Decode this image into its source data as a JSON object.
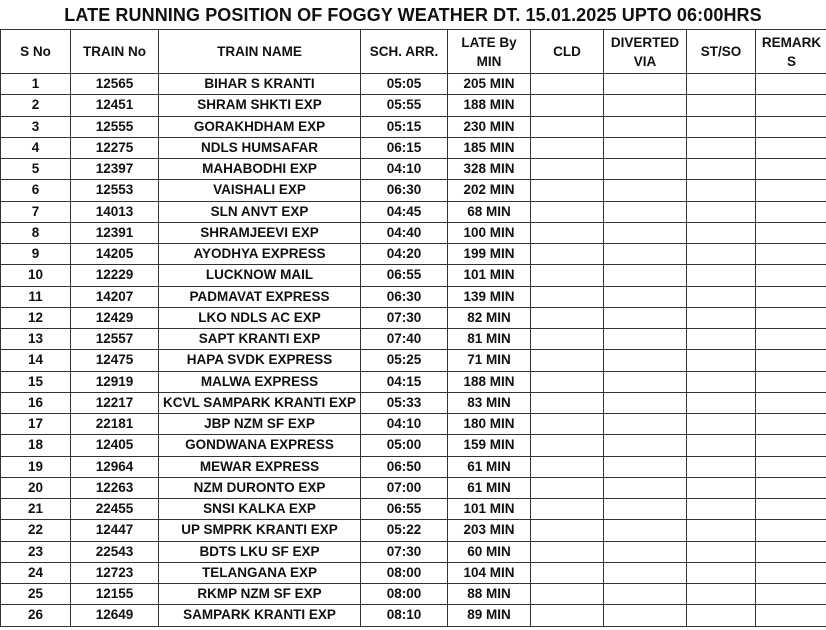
{
  "title": "LATE RUNNING POSITION OF FOGGY WEATHER  DT. 15.01.2025 UPTO 06:00HRS",
  "columns": [
    "S No",
    "TRAIN No",
    "TRAIN NAME",
    "SCH. ARR.",
    "LATE By MIN",
    "CLD",
    "DIVERTED VIA",
    "ST/SO",
    "REMARK S"
  ],
  "rows": [
    [
      "1",
      "12565",
      "BIHAR S KRANTI",
      "05:05",
      "205 MIN",
      "",
      "",
      "",
      ""
    ],
    [
      "2",
      "12451",
      "SHRAM SHKTI EXP",
      "05:55",
      "188 MIN",
      "",
      "",
      "",
      ""
    ],
    [
      "3",
      "12555",
      "GORAKHDHAM EXP",
      "05:15",
      "230 MIN",
      "",
      "",
      "",
      ""
    ],
    [
      "4",
      "12275",
      "NDLS HUMSAFAR",
      "06:15",
      "185 MIN",
      "",
      "",
      "",
      ""
    ],
    [
      "5",
      "12397",
      "MAHABODHI EXP",
      "04:10",
      "328 MIN",
      "",
      "",
      "",
      ""
    ],
    [
      "6",
      "12553",
      "VAISHALI EXP",
      "06:30",
      "202 MIN",
      "",
      "",
      "",
      ""
    ],
    [
      "7",
      "14013",
      "SLN ANVT EXP",
      "04:45",
      "68 MIN",
      "",
      "",
      "",
      ""
    ],
    [
      "8",
      "12391",
      "SHRAMJEEVI EXP",
      "04:40",
      "100 MIN",
      "",
      "",
      "",
      ""
    ],
    [
      "9",
      "14205",
      "AYODHYA EXPRESS",
      "04:20",
      "199 MIN",
      "",
      "",
      "",
      ""
    ],
    [
      "10",
      "12229",
      "LUCKNOW MAIL",
      "06:55",
      "101 MIN",
      "",
      "",
      "",
      ""
    ],
    [
      "11",
      "14207",
      "PADMAVAT EXPRESS",
      "06:30",
      "139 MIN",
      "",
      "",
      "",
      ""
    ],
    [
      "12",
      "12429",
      "LKO NDLS AC EXP",
      "07:30",
      "82 MIN",
      "",
      "",
      "",
      ""
    ],
    [
      "13",
      "12557",
      "SAPT KRANTI EXP",
      "07:40",
      "81 MIN",
      "",
      "",
      "",
      ""
    ],
    [
      "14",
      "12475",
      "HAPA SVDK EXPRESS",
      "05:25",
      "71 MIN",
      "",
      "",
      "",
      ""
    ],
    [
      "15",
      "12919",
      "MALWA EXPRESS",
      "04:15",
      "188 MIN",
      "",
      "",
      "",
      ""
    ],
    [
      "16",
      "12217",
      "KCVL SAMPARK KRANTI EXP",
      "05:33",
      "83 MIN",
      "",
      "",
      "",
      ""
    ],
    [
      "17",
      "22181",
      "JBP NZM SF EXP",
      "04:10",
      "180 MIN",
      "",
      "",
      "",
      ""
    ],
    [
      "18",
      "12405",
      "GONDWANA EXPRESS",
      "05:00",
      "159 MIN",
      "",
      "",
      "",
      ""
    ],
    [
      "19",
      "12964",
      "MEWAR EXPRESS",
      "06:50",
      "61 MIN",
      "",
      "",
      "",
      ""
    ],
    [
      "20",
      "12263",
      "NZM DURONTO EXP",
      "07:00",
      "61 MIN",
      "",
      "",
      "",
      ""
    ],
    [
      "21",
      "22455",
      "SNSI KALKA EXP",
      "06:55",
      "101 MIN",
      "",
      "",
      "",
      ""
    ],
    [
      "22",
      "12447",
      "UP SMPRK KRANTI EXP",
      "05:22",
      "203 MIN",
      "",
      "",
      "",
      ""
    ],
    [
      "23",
      "22543",
      "BDTS LKU SF EXP",
      "07:30",
      "60 MIN",
      "",
      "",
      "",
      ""
    ],
    [
      "24",
      "12723",
      "TELANGANA EXP",
      "08:00",
      "104 MIN",
      "",
      "",
      "",
      ""
    ],
    [
      "25",
      "12155",
      "RKMP NZM SF EXP",
      "08:00",
      "88 MIN",
      "",
      "",
      "",
      ""
    ],
    [
      "26",
      "12649",
      "SAMPARK KRANTI EXP",
      "08:10",
      "89 MIN",
      "",
      "",
      "",
      ""
    ]
  ]
}
